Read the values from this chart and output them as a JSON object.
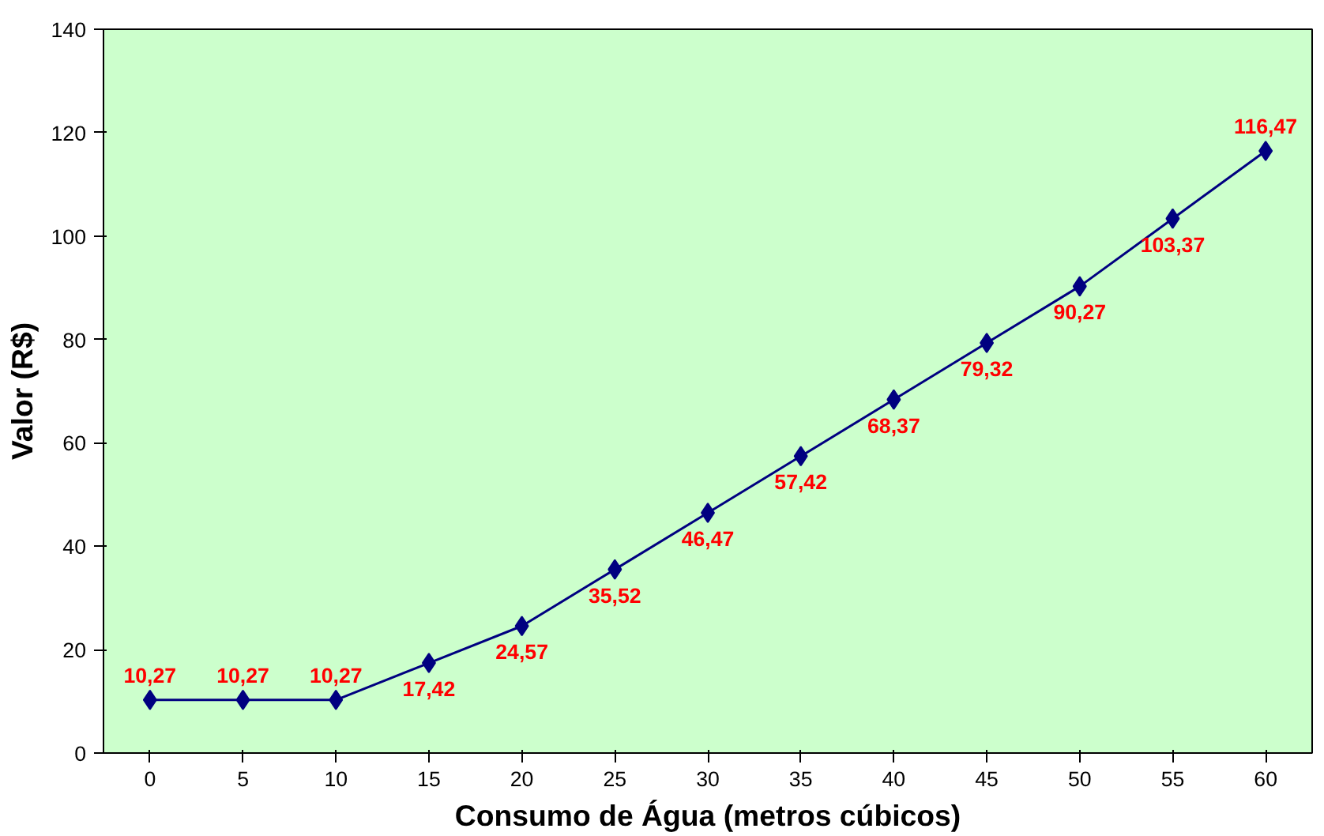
{
  "chart_data": {
    "type": "line",
    "xlabel": "Consumo de Água (metros cúbicos)",
    "ylabel": "Valor (R$)",
    "categories": [
      "0",
      "5",
      "10",
      "15",
      "20",
      "25",
      "30",
      "35",
      "40",
      "45",
      "50",
      "55",
      "60"
    ],
    "series": [
      {
        "color": "#000080",
        "values": [
          10.27,
          10.27,
          10.27,
          17.42,
          24.57,
          35.52,
          46.47,
          57.42,
          68.37,
          79.32,
          90.27,
          103.37,
          116.47
        ],
        "value_labels": [
          "10,27",
          "10,27",
          "10,27",
          "17,42",
          "24,57",
          "35,52",
          "46,47",
          "57,42",
          "68,37",
          "79,32",
          "90,27",
          "103,37",
          "116,47"
        ]
      }
    ],
    "ylim": [
      0,
      140
    ],
    "yticks": [
      0,
      20,
      40,
      60,
      80,
      100,
      120,
      140
    ],
    "grid": false,
    "marker": "diamond",
    "line_style": "solid"
  }
}
